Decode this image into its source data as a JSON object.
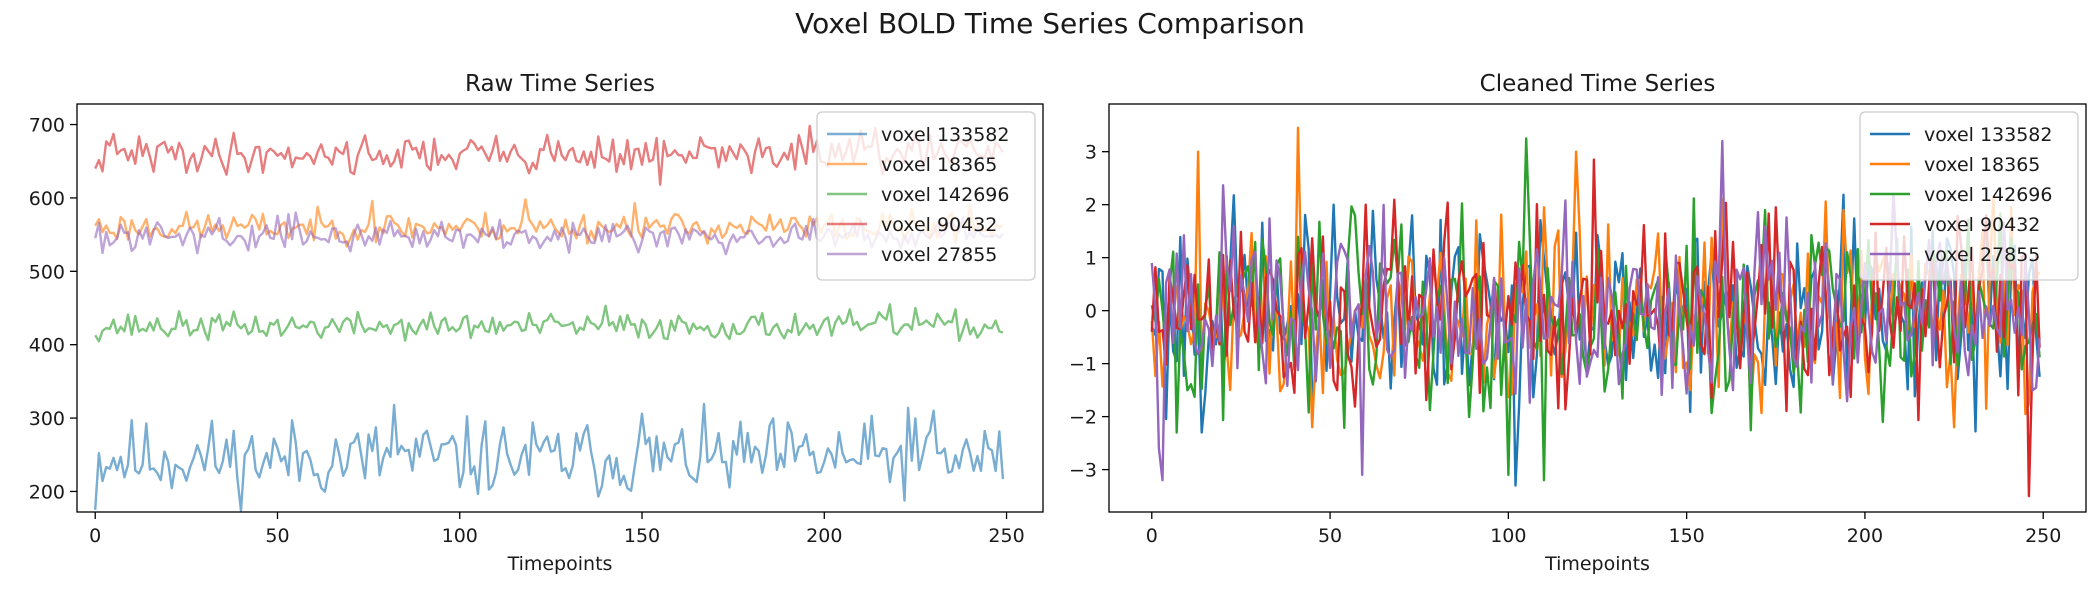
{
  "figure_title": "Voxel BOLD Time Series Comparison",
  "colors": {
    "axis": "#000000",
    "legend_border": "#cccccc",
    "series": [
      "#1f77b4",
      "#ff7f0e",
      "#2ca02c",
      "#d62728",
      "#9467bd"
    ]
  },
  "chart_data": [
    {
      "type": "line",
      "title": "Raw Time Series",
      "xlabel": "Timepoints",
      "ylabel": "",
      "xlim": [
        -5,
        260
      ],
      "ylim": [
        172,
        728
      ],
      "xticks": [
        0,
        50,
        100,
        150,
        200,
        250
      ],
      "yticks": [
        200,
        300,
        400,
        500,
        600,
        700
      ],
      "line_alpha": 0.6,
      "legend": "top-right",
      "grid": false,
      "series": [
        {
          "name": "voxel 133582",
          "mean": 245,
          "amp": 26,
          "start": 175,
          "spikes": {
            "82": 318,
            "150": 306,
            "223": 314,
            "230": 310
          },
          "seed": 11
        },
        {
          "name": "voxel 18365",
          "mean": 560,
          "amp": 10,
          "start": 562,
          "spikes": {
            "76": 596,
            "118": 598,
            "148": 593,
            "240": 590
          },
          "seed": 23
        },
        {
          "name": "voxel 142696",
          "mean": 425,
          "amp": 9,
          "start": 413,
          "spikes": {
            "140": 453,
            "218": 455,
            "225": 450
          },
          "seed": 37
        },
        {
          "name": "voxel 90432",
          "mean": 660,
          "amp": 13,
          "start": 640,
          "spikes": {
            "155": 618,
            "196": 698,
            "214": 695
          },
          "seed": 41
        },
        {
          "name": "voxel 27855",
          "mean": 550,
          "amp": 10,
          "start": 545,
          "spikes": {
            "2": 525,
            "55": 580
          },
          "seed": 59
        }
      ]
    },
    {
      "type": "line",
      "title": "Cleaned Time Series",
      "xlabel": "Timepoints",
      "ylabel": "",
      "xlim": [
        -12,
        262
      ],
      "ylim": [
        -3.8,
        3.9
      ],
      "xticks": [
        0,
        50,
        100,
        150,
        200,
        250
      ],
      "yticks": [
        -3,
        -2,
        -1,
        0,
        1,
        2,
        3
      ],
      "line_alpha": 1.0,
      "legend": "top-right",
      "grid": false,
      "series": [
        {
          "name": "voxel 133582",
          "mean": 0,
          "amp": 0.9,
          "start": -0.3,
          "spikes": {
            "102": -3.3,
            "51": 2.0,
            "73": 1.8
          },
          "seed": 101
        },
        {
          "name": "voxel 18365",
          "mean": 0,
          "amp": 0.9,
          "start": -0.2,
          "spikes": {
            "13": 3.0,
            "41": 3.45,
            "45": -2.2,
            "119": 3.0,
            "225": -2.2,
            "245": -1.95
          },
          "seed": 202
        },
        {
          "name": "voxel 142696",
          "mean": 0,
          "amp": 0.9,
          "start": 0.1,
          "spikes": {
            "7": -2.3,
            "93": -1.9,
            "100": -3.1,
            "105": 3.25,
            "110": -3.2,
            "205": -2.1
          },
          "seed": 303
        },
        {
          "name": "voxel 90432",
          "mean": 0,
          "amp": 0.9,
          "start": -0.4,
          "spikes": {
            "60": 2.0,
            "124": 2.85,
            "158": 1.5,
            "175": 1.95,
            "234": 1.8,
            "246": -3.5
          },
          "seed": 404
        },
        {
          "name": "voxel 27855",
          "mean": 0,
          "amp": 0.9,
          "start": 0.9,
          "spikes": {
            "2": -2.6,
            "3": -3.2,
            "59": -3.1,
            "160": 3.2,
            "163": -1.5,
            "209": 1.0
          },
          "seed": 505
        }
      ]
    }
  ]
}
